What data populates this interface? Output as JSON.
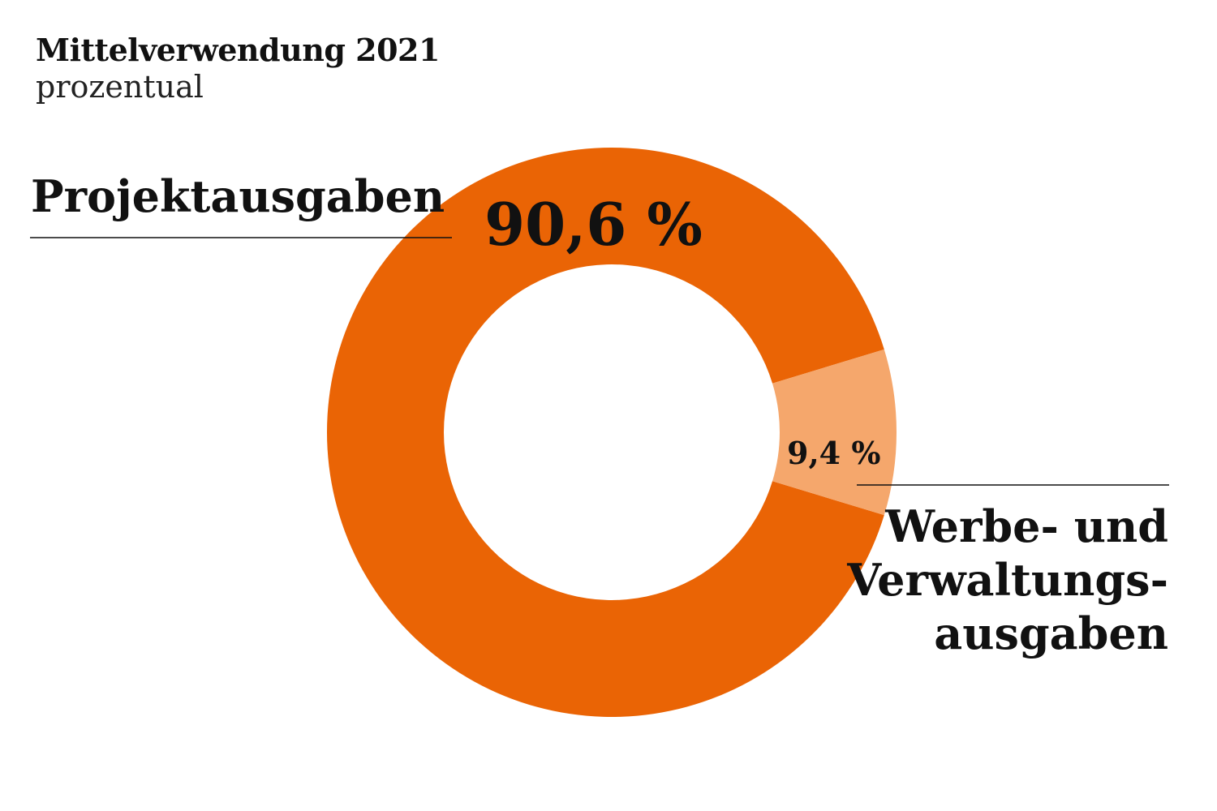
{
  "header": {
    "title": "Mittelverwendung 2021",
    "subtitle": "prozentual"
  },
  "chart_data": {
    "type": "pie",
    "donut": true,
    "title": "Mittelverwendung 2021",
    "subtitle": "prozentual",
    "unit": "%",
    "slices": [
      {
        "label": "Projektausgaben",
        "label_lines": [
          "Projektausgaben"
        ],
        "value": 90.6,
        "value_label": "90,6 %",
        "color": "#EA6405"
      },
      {
        "label": "Werbe- und Verwaltungsausgaben",
        "label_lines": [
          "Werbe- und",
          "Verwaltungs-",
          "ausgaben"
        ],
        "value": 9.4,
        "value_label": "9,4 %",
        "color": "#F5A76C"
      }
    ]
  }
}
